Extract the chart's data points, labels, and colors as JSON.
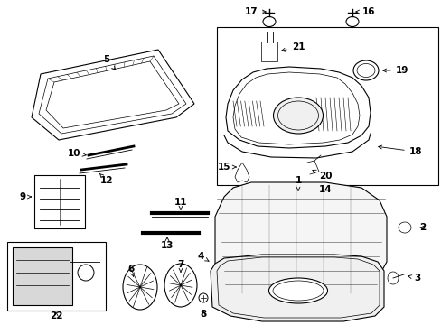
{
  "bg_color": "#ffffff",
  "line_color": "#000000",
  "gray_fill": "#e8e8e8",
  "light_gray": "#d0d0d0"
}
